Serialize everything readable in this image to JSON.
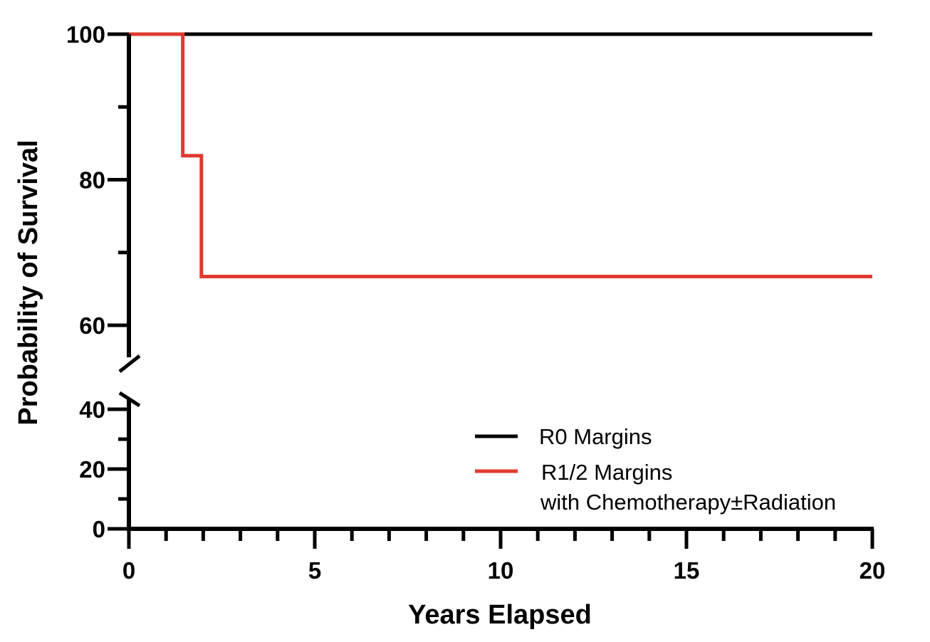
{
  "chart_data": {
    "type": "line",
    "step": true,
    "xlabel": "Years Elapsed",
    "ylabel": "Probability of Survival",
    "xlim": [
      0,
      20
    ],
    "x_ticks": [
      0,
      5,
      10,
      15,
      20
    ],
    "x_tick_labels": [
      "0",
      "5",
      "10",
      "15",
      "20"
    ],
    "y_axis_broken": true,
    "y_segments": [
      {
        "range": [
          0,
          40
        ],
        "major_ticks": [
          0,
          20,
          40
        ],
        "tick_labels": [
          "0",
          "20",
          "40"
        ],
        "minor_ticks": [
          10,
          30
        ]
      },
      {
        "range": [
          60,
          100
        ],
        "major_ticks": [
          60,
          80,
          100
        ],
        "tick_labels": [
          "60",
          "80",
          "100"
        ],
        "minor_ticks": [
          70,
          90
        ]
      }
    ],
    "grid": false,
    "legend_position": "bottom-right",
    "series": [
      {
        "name": "R0 Margins",
        "color": "#000000",
        "x": [
          0,
          20
        ],
        "y": [
          100,
          100
        ]
      },
      {
        "name": "R1/2 Margins",
        "name_line2": "with Chemotherapy±Radiation",
        "color": "#e03a2f",
        "x": [
          0,
          1.45,
          1.95,
          20
        ],
        "y": [
          100,
          83.3,
          66.7,
          66.7
        ]
      }
    ]
  }
}
